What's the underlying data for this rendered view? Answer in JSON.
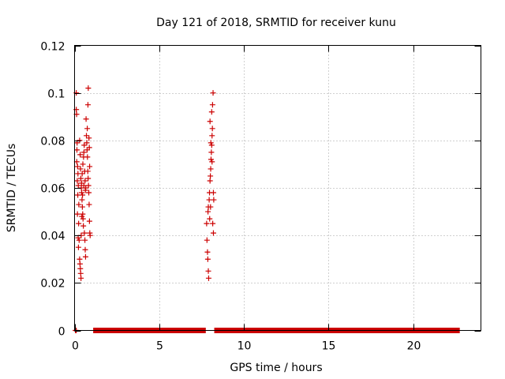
{
  "chart_data": {
    "type": "scatter",
    "title": "Day 121 of 2018, SRMTID for receiver kunu",
    "xlabel": "GPS time / hours",
    "ylabel": "SRMTID / TECUs",
    "xlim": [
      0,
      24
    ],
    "ylim": [
      0,
      0.12
    ],
    "x_ticks": [
      0,
      5,
      10,
      15,
      20
    ],
    "x_tick_labels": [
      "0",
      "5",
      "10",
      "15",
      "20"
    ],
    "y_ticks": [
      0,
      0.02,
      0.04,
      0.06,
      0.08,
      0.1,
      0.12
    ],
    "y_tick_labels": [
      "0",
      "0.02",
      "0.04",
      "0.06",
      "0.08",
      "0.1",
      "0.12"
    ],
    "grid": true,
    "series": [
      {
        "name": "SRMTID",
        "color": "#cc0000",
        "marker": "plus",
        "points": [
          [
            0.1,
            0.1
          ],
          [
            0.1,
            0.093
          ],
          [
            0.12,
            0.091
          ],
          [
            0.15,
            0.079
          ],
          [
            0.14,
            0.076
          ],
          [
            0.13,
            0.071
          ],
          [
            0.18,
            0.069
          ],
          [
            0.2,
            0.066
          ],
          [
            0.16,
            0.063
          ],
          [
            0.22,
            0.061
          ],
          [
            0.19,
            0.057
          ],
          [
            0.25,
            0.053
          ],
          [
            0.17,
            0.049
          ],
          [
            0.24,
            0.045
          ],
          [
            0.21,
            0.039
          ],
          [
            0.27,
            0.038
          ],
          [
            0.23,
            0.035
          ],
          [
            0.3,
            0.03
          ],
          [
            0.32,
            0.028
          ],
          [
            0.34,
            0.026
          ],
          [
            0.36,
            0.024
          ],
          [
            0.38,
            0.022
          ],
          [
            0.3,
            0.08
          ],
          [
            0.33,
            0.074
          ],
          [
            0.35,
            0.068
          ],
          [
            0.37,
            0.064
          ],
          [
            0.4,
            0.06
          ],
          [
            0.42,
            0.058
          ],
          [
            0.44,
            0.055
          ],
          [
            0.46,
            0.052
          ],
          [
            0.48,
            0.049
          ],
          [
            0.5,
            0.047
          ],
          [
            0.52,
            0.044
          ],
          [
            0.41,
            0.062
          ],
          [
            0.45,
            0.066
          ],
          [
            0.49,
            0.07
          ],
          [
            0.53,
            0.073
          ],
          [
            0.55,
            0.075
          ],
          [
            0.57,
            0.078
          ],
          [
            0.6,
            0.067
          ],
          [
            0.62,
            0.063
          ],
          [
            0.64,
            0.059
          ],
          [
            0.66,
            0.06
          ],
          [
            0.58,
            0.041
          ],
          [
            0.61,
            0.038
          ],
          [
            0.63,
            0.034
          ],
          [
            0.65,
            0.031
          ],
          [
            0.68,
            0.089
          ],
          [
            0.7,
            0.082
          ],
          [
            0.72,
            0.079
          ],
          [
            0.74,
            0.076
          ],
          [
            0.76,
            0.073
          ],
          [
            0.78,
            0.067
          ],
          [
            0.8,
            0.064
          ],
          [
            0.82,
            0.061
          ],
          [
            0.84,
            0.058
          ],
          [
            0.86,
            0.053
          ],
          [
            0.88,
            0.046
          ],
          [
            0.9,
            0.041
          ],
          [
            0.92,
            0.04
          ],
          [
            0.75,
            0.085
          ],
          [
            0.79,
            0.095
          ],
          [
            0.81,
            0.102
          ],
          [
            0.85,
            0.081
          ],
          [
            0.87,
            0.077
          ],
          [
            0.89,
            0.069
          ],
          [
            0.55,
            0.061
          ],
          [
            0.47,
            0.057
          ],
          [
            0.43,
            0.048
          ],
          [
            0.39,
            0.04
          ],
          [
            7.8,
            0.045
          ],
          [
            7.82,
            0.038
          ],
          [
            7.85,
            0.033
          ],
          [
            7.87,
            0.03
          ],
          [
            7.9,
            0.025
          ],
          [
            7.92,
            0.022
          ],
          [
            7.88,
            0.05
          ],
          [
            7.9,
            0.052
          ],
          [
            7.95,
            0.055
          ],
          [
            7.97,
            0.058
          ],
          [
            8.0,
            0.063
          ],
          [
            8.02,
            0.065
          ],
          [
            8.04,
            0.068
          ],
          [
            8.06,
            0.072
          ],
          [
            8.08,
            0.075
          ],
          [
            8.1,
            0.078
          ],
          [
            8.12,
            0.082
          ],
          [
            8.14,
            0.085
          ],
          [
            8.0,
            0.088
          ],
          [
            8.1,
            0.092
          ],
          [
            8.15,
            0.095
          ],
          [
            8.18,
            0.1
          ],
          [
            8.05,
            0.079
          ],
          [
            8.12,
            0.071
          ],
          [
            8.2,
            0.058
          ],
          [
            8.22,
            0.055
          ],
          [
            8.16,
            0.045
          ],
          [
            8.2,
            0.041
          ],
          [
            7.98,
            0.047
          ],
          [
            8.03,
            0.052
          ],
          [
            0.05,
            0.0
          ],
          [
            0.1,
            0.0
          ]
        ]
      }
    ],
    "zero_runs": [
      [
        1.1,
        7.75
      ],
      [
        8.25,
        22.75
      ]
    ]
  }
}
